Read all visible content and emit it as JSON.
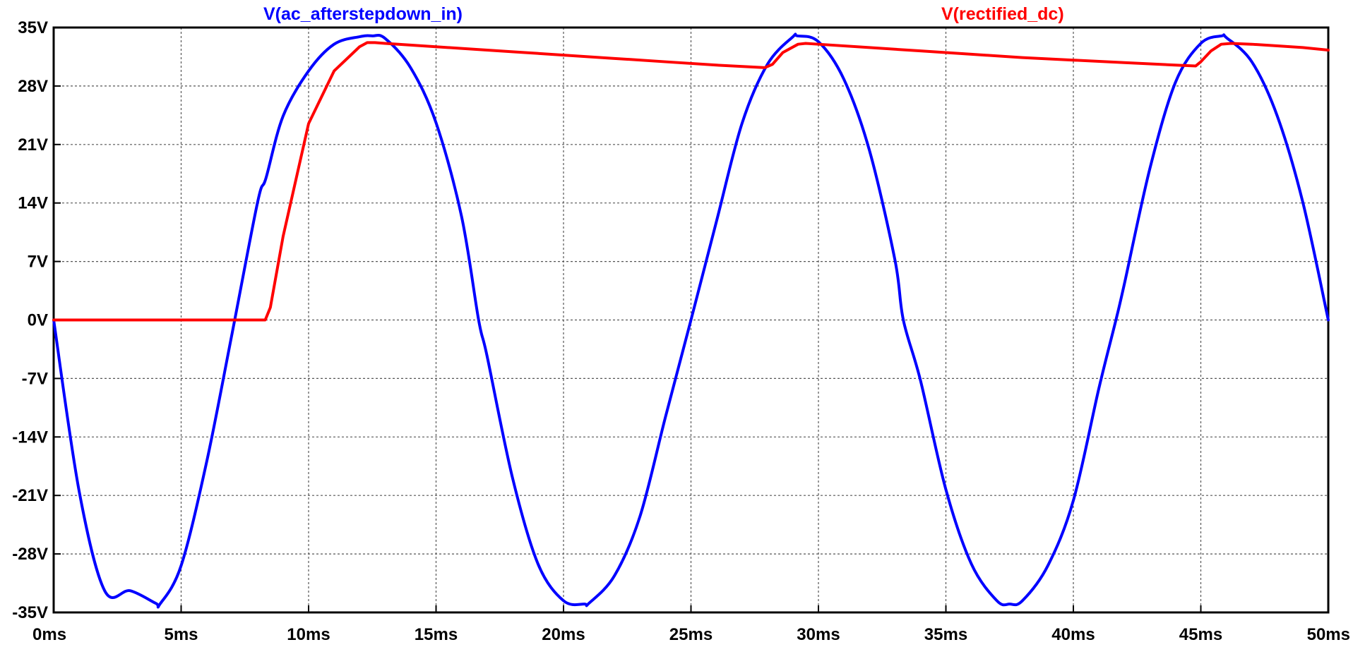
{
  "chart_data": {
    "type": "line",
    "title": "",
    "xlabel": "",
    "ylabel": "",
    "x_unit": "ms",
    "y_unit": "V",
    "xlim": [
      0,
      50
    ],
    "ylim": [
      -35,
      35
    ],
    "x_ticks": [
      0,
      5,
      10,
      15,
      20,
      25,
      30,
      35,
      40,
      45,
      50
    ],
    "x_tick_labels": [
      "0ms",
      "5ms",
      "10ms",
      "15ms",
      "20ms",
      "25ms",
      "30ms",
      "35ms",
      "40ms",
      "45ms",
      "50ms"
    ],
    "y_ticks": [
      35,
      28,
      21,
      14,
      7,
      0,
      -7,
      -14,
      -21,
      -28,
      -35
    ],
    "y_tick_labels": [
      "35V",
      "28V",
      "21V",
      "14V",
      "7V",
      "0V",
      "-7V",
      "-14V",
      "-21V",
      "-28V",
      "-35V"
    ],
    "grid": true,
    "background": "#ffffff",
    "grid_color": "#555555",
    "series": [
      {
        "name": "V(ac_afterstepdown_in)",
        "color": "#0000ff",
        "x": [
          0,
          1,
          2,
          3,
          4,
          4.17,
          5,
          6,
          7,
          8,
          8.33,
          9,
          10,
          11,
          12,
          12.5,
          13,
          14,
          15,
          16,
          16.67,
          17,
          18,
          19,
          20,
          20.83,
          21,
          22,
          23,
          24,
          25,
          26,
          27,
          28,
          29,
          29.17,
          30,
          31,
          32,
          33,
          33.33,
          34,
          35,
          36,
          37,
          37.5,
          38,
          39,
          40,
          41,
          41.67,
          42,
          43,
          44,
          45,
          45.83,
          46,
          47,
          48,
          49,
          50
        ],
        "y": [
          0,
          -20.5,
          -32.4,
          -32.4,
          -33.9,
          -34,
          -29.4,
          -17,
          -1.6,
          14.1,
          17,
          24.4,
          29.8,
          33,
          33.9,
          34,
          33.7,
          30.2,
          23.6,
          12.4,
          0,
          -4.3,
          -18.9,
          -29.2,
          -33.6,
          -34,
          -33.9,
          -30.6,
          -23.5,
          -11.6,
          0,
          11.8,
          23.5,
          30.6,
          33.9,
          34,
          33.3,
          28.8,
          20.3,
          7.2,
          0,
          -7.2,
          -20.3,
          -29.2,
          -33.6,
          -34,
          -33.6,
          -29.4,
          -21.6,
          -8.2,
          0,
          4.3,
          18.1,
          28.4,
          33.1,
          34,
          33.8,
          30.9,
          24.4,
          14.1,
          0
        ]
      },
      {
        "name": "V(rectified_dc)",
        "color": "#ff0000",
        "x": [
          0,
          8.3,
          8.5,
          9,
          10,
          11,
          12,
          12.3,
          12.6,
          13,
          14,
          16,
          18,
          20,
          22,
          24,
          26,
          27.9,
          28.2,
          28.6,
          29.2,
          29.5,
          30,
          32,
          34,
          36,
          38,
          40,
          42,
          44,
          44.8,
          45,
          45.4,
          45.8,
          46.2,
          47,
          48,
          49,
          50
        ],
        "y": [
          0,
          0,
          1.5,
          10,
          23.5,
          29.8,
          32.7,
          33.2,
          33.2,
          33.1,
          32.9,
          32.5,
          32.1,
          31.7,
          31.3,
          30.9,
          30.5,
          30.2,
          30.6,
          32,
          33,
          33.1,
          33,
          32.6,
          32.2,
          31.8,
          31.4,
          31.1,
          30.8,
          30.5,
          30.4,
          30.9,
          32.2,
          33,
          33.1,
          33,
          32.8,
          32.6,
          32.3
        ]
      }
    ]
  }
}
